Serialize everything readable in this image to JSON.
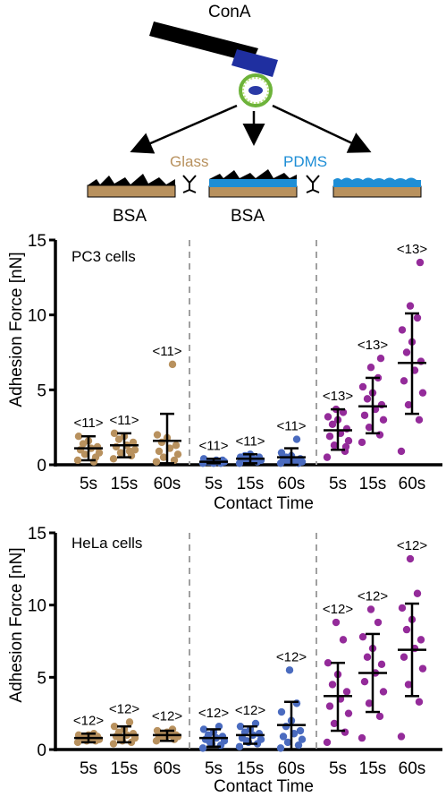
{
  "schematic": {
    "title": "ConA",
    "glass_label": "Glass",
    "pdms_label": "PDMS",
    "bsa_label_1": "BSA",
    "bsa_label_2": "BSA"
  },
  "colors": {
    "glass": "#b8915e",
    "pdms": "#4a6bbf",
    "pdms_on_pdms": "#942b9a",
    "pdms_blue": "#1e8ed6",
    "cell_green": "#7ec53a",
    "nucleus": "#2a3aa6",
    "divider": "#a0a0a0"
  },
  "chart_data": [
    {
      "type": "scatter",
      "panel_label": "PC3 cells",
      "ylabel": "Adhesion Force [nN]",
      "xlabel": "Contact Time",
      "ylim": [
        0,
        15
      ],
      "yticks": [
        0,
        5,
        10,
        15
      ],
      "categories": [
        "5s",
        "15s",
        "60s",
        "5s",
        "15s",
        "60s",
        "5s",
        "15s",
        "60s"
      ],
      "groups": [
        {
          "category": "5s",
          "color_key": "glass",
          "n_label": "<11>",
          "mean": 1.1,
          "sd_low": 0.3,
          "sd_high": 1.9,
          "points": [
            0.3,
            0.5,
            0.7,
            0.8,
            1.0,
            1.1,
            1.2,
            1.4,
            1.6,
            1.9,
            0.2
          ]
        },
        {
          "category": "15s",
          "color_key": "glass",
          "n_label": "<11>",
          "mean": 1.3,
          "sd_low": 0.5,
          "sd_high": 2.1,
          "points": [
            0.4,
            0.6,
            0.8,
            1.0,
            1.2,
            1.3,
            1.5,
            1.7,
            1.9,
            2.1,
            0.9
          ]
        },
        {
          "category": "60s",
          "color_key": "glass",
          "n_label": "<11>",
          "mean": 1.6,
          "sd_low": 0.1,
          "sd_high": 3.4,
          "points": [
            0.2,
            0.3,
            0.5,
            0.7,
            0.9,
            1.1,
            1.3,
            1.5,
            1.8,
            2.0,
            6.7
          ]
        },
        {
          "category": "5s",
          "color_key": "pdms",
          "n_label": "<11>",
          "mean": 0.2,
          "sd_low": 0.1,
          "sd_high": 0.4,
          "points": [
            0.1,
            0.1,
            0.2,
            0.2,
            0.2,
            0.3,
            0.3,
            0.2,
            0.1,
            0.4,
            0.2
          ]
        },
        {
          "category": "15s",
          "color_key": "pdms",
          "n_label": "<11>",
          "mean": 0.4,
          "sd_low": 0.1,
          "sd_high": 0.7,
          "points": [
            0.1,
            0.2,
            0.3,
            0.3,
            0.4,
            0.4,
            0.5,
            0.6,
            0.7,
            0.5,
            0.3
          ]
        },
        {
          "category": "60s",
          "color_key": "pdms",
          "n_label": "<11>",
          "mean": 0.5,
          "sd_low": 0.0,
          "sd_high": 1.1,
          "points": [
            0.1,
            0.1,
            0.2,
            0.2,
            0.3,
            0.3,
            0.4,
            0.5,
            0.6,
            0.8,
            1.7
          ]
        },
        {
          "category": "5s",
          "color_key": "pdms_on_pdms",
          "n_label": "<13>",
          "mean": 2.3,
          "sd_low": 1.0,
          "sd_high": 3.7,
          "points": [
            0.5,
            0.9,
            1.3,
            1.6,
            1.9,
            2.1,
            2.4,
            2.7,
            3.0,
            3.2,
            3.5,
            3.7,
            1.2
          ]
        },
        {
          "category": "15s",
          "color_key": "pdms_on_pdms",
          "n_label": "<13>",
          "mean": 3.9,
          "sd_low": 2.1,
          "sd_high": 5.8,
          "points": [
            1.5,
            2.0,
            2.5,
            3.0,
            3.3,
            3.7,
            4.0,
            4.4,
            4.8,
            5.2,
            5.8,
            6.5,
            7.1
          ]
        },
        {
          "category": "60s",
          "color_key": "pdms_on_pdms",
          "n_label": "<13>",
          "mean": 6.8,
          "sd_low": 3.4,
          "sd_high": 10.1,
          "points": [
            0.9,
            3.0,
            4.0,
            4.8,
            5.6,
            6.3,
            6.9,
            7.5,
            8.2,
            9.0,
            9.8,
            10.6,
            13.5
          ]
        }
      ]
    },
    {
      "type": "scatter",
      "panel_label": "HeLa cells",
      "ylabel": "Adhesion Force [nN]",
      "xlabel": "Contact Time",
      "ylim": [
        0,
        15
      ],
      "yticks": [
        0,
        5,
        10,
        15
      ],
      "categories": [
        "5s",
        "15s",
        "60s",
        "5s",
        "15s",
        "60s",
        "5s",
        "15s",
        "60s"
      ],
      "groups": [
        {
          "category": "5s",
          "color_key": "glass",
          "n_label": "<12>",
          "mean": 0.8,
          "sd_low": 0.5,
          "sd_high": 1.1,
          "points": [
            0.5,
            0.6,
            0.7,
            0.7,
            0.8,
            0.8,
            0.9,
            0.9,
            1.0,
            1.0,
            1.1,
            0.6
          ]
        },
        {
          "category": "15s",
          "color_key": "glass",
          "n_label": "<12>",
          "mean": 1.0,
          "sd_low": 0.5,
          "sd_high": 1.6,
          "points": [
            0.4,
            0.5,
            0.7,
            0.8,
            0.9,
            1.0,
            1.1,
            1.2,
            1.4,
            1.6,
            1.9,
            0.6
          ]
        },
        {
          "category": "60s",
          "color_key": "glass",
          "n_label": "<12>",
          "mean": 1.0,
          "sd_low": 0.6,
          "sd_high": 1.3,
          "points": [
            0.6,
            0.7,
            0.8,
            0.9,
            0.9,
            1.0,
            1.0,
            1.1,
            1.2,
            1.3,
            1.4,
            0.8
          ]
        },
        {
          "category": "5s",
          "color_key": "pdms",
          "n_label": "<12>",
          "mean": 0.8,
          "sd_low": 0.2,
          "sd_high": 1.4,
          "points": [
            0.1,
            0.3,
            0.5,
            0.6,
            0.7,
            0.8,
            0.9,
            1.0,
            1.2,
            1.4,
            1.6,
            0.4
          ]
        },
        {
          "category": "15s",
          "color_key": "pdms",
          "n_label": "<12>",
          "mean": 1.0,
          "sd_low": 0.4,
          "sd_high": 1.6,
          "points": [
            0.2,
            0.4,
            0.6,
            0.7,
            0.8,
            1.0,
            1.1,
            1.2,
            1.4,
            1.6,
            1.8,
            0.5
          ]
        },
        {
          "category": "60s",
          "color_key": "pdms",
          "n_label": "<12>",
          "mean": 1.7,
          "sd_low": 0.0,
          "sd_high": 3.3,
          "points": [
            0.1,
            0.3,
            0.5,
            0.7,
            0.9,
            1.1,
            1.3,
            1.6,
            2.0,
            2.6,
            3.2,
            5.5
          ]
        },
        {
          "category": "5s",
          "color_key": "pdms_on_pdms",
          "n_label": "<12>",
          "mean": 3.7,
          "sd_low": 1.3,
          "sd_high": 6.0,
          "points": [
            0.5,
            1.2,
            1.8,
            2.5,
            3.0,
            3.5,
            4.0,
            4.5,
            5.2,
            6.0,
            7.6,
            8.8
          ]
        },
        {
          "category": "15s",
          "color_key": "pdms_on_pdms",
          "n_label": "<12>",
          "mean": 5.3,
          "sd_low": 2.6,
          "sd_high": 8.0,
          "points": [
            0.8,
            2.3,
            3.2,
            4.0,
            4.7,
            5.3,
            5.9,
            6.4,
            7.0,
            7.8,
            8.8,
            9.7
          ]
        },
        {
          "category": "60s",
          "color_key": "pdms_on_pdms",
          "n_label": "<12>",
          "mean": 6.9,
          "sd_low": 3.7,
          "sd_high": 10.1,
          "points": [
            0.9,
            3.3,
            4.5,
            5.6,
            6.4,
            7.0,
            7.6,
            8.3,
            9.0,
            9.8,
            10.8,
            13.2
          ]
        }
      ]
    }
  ]
}
